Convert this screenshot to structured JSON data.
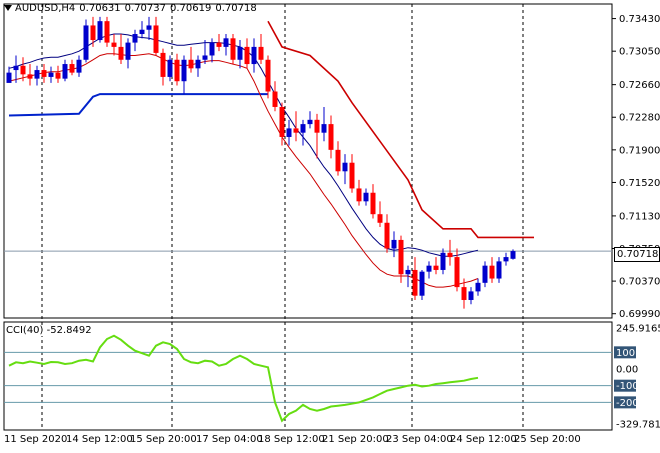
{
  "header": {
    "symbol": "AUDUSD,H4",
    "open": "0.70631",
    "high": "0.70737",
    "low": "0.70619",
    "close": "0.70718"
  },
  "indicator": {
    "label": "CCI(40) -52.8492"
  },
  "current_price": "0.70718",
  "colors": {
    "bull": "#0000cc",
    "bear": "#ff0000",
    "ma_dark": "#000080",
    "ma_light": "#cc0000",
    "resistance": "#cc0000",
    "support": "#0022cc",
    "cci": "#66dd11",
    "grid": "#000000"
  },
  "chart_data": [
    {
      "type": "candlestick",
      "y_ticks": [
        "0.73430",
        "0.73050",
        "0.72660",
        "0.72280",
        "0.71900",
        "0.71520",
        "0.71130",
        "0.70750",
        "0.70370",
        "0.69990"
      ],
      "x_ticks": [
        "11 Sep 2020",
        "14 Sep 12:00",
        "15 Sep 20:00",
        "17 Sep 04:00",
        "18 Sep 12:00",
        "21 Sep 20:00",
        "23 Sep 04:00",
        "24 Sep 12:00",
        "25 Sep 20:00"
      ],
      "ylim": [
        0.6994,
        0.736
      ],
      "candles": [
        [
          0.7268,
          0.7287,
          0.727,
          0.728
        ],
        [
          0.7283,
          0.73,
          0.7268,
          0.7288
        ],
        [
          0.7288,
          0.7298,
          0.727,
          0.7278
        ],
        [
          0.7278,
          0.729,
          0.7265,
          0.7273
        ],
        [
          0.7273,
          0.7288,
          0.7265,
          0.7283
        ],
        [
          0.7283,
          0.729,
          0.7268,
          0.7275
        ],
        [
          0.7275,
          0.7287,
          0.7268,
          0.728
        ],
        [
          0.728,
          0.7288,
          0.7268,
          0.7273
        ],
        [
          0.7273,
          0.7295,
          0.727,
          0.729
        ],
        [
          0.729,
          0.7295,
          0.7277,
          0.728
        ],
        [
          0.728,
          0.73,
          0.7275,
          0.7295
        ],
        [
          0.7295,
          0.7342,
          0.7292,
          0.7335
        ],
        [
          0.7335,
          0.7345,
          0.731,
          0.7318
        ],
        [
          0.7318,
          0.7345,
          0.7315,
          0.734
        ],
        [
          0.734,
          0.7345,
          0.731,
          0.7315
        ],
        [
          0.7315,
          0.7325,
          0.73,
          0.731
        ],
        [
          0.731,
          0.7325,
          0.729,
          0.7295
        ],
        [
          0.7295,
          0.732,
          0.7285,
          0.7315
        ],
        [
          0.7315,
          0.733,
          0.7305,
          0.7325
        ],
        [
          0.7325,
          0.734,
          0.732,
          0.733
        ],
        [
          0.733,
          0.7345,
          0.7318,
          0.7335
        ],
        [
          0.7335,
          0.7345,
          0.73,
          0.7303
        ],
        [
          0.7303,
          0.7308,
          0.7265,
          0.7275
        ],
        [
          0.7275,
          0.73,
          0.727,
          0.7295
        ],
        [
          0.7295,
          0.7302,
          0.7265,
          0.727
        ],
        [
          0.727,
          0.73,
          0.7255,
          0.7295
        ],
        [
          0.7295,
          0.731,
          0.728,
          0.7285
        ],
        [
          0.7285,
          0.73,
          0.7275,
          0.7295
        ],
        [
          0.7295,
          0.7318,
          0.729,
          0.73
        ],
        [
          0.73,
          0.732,
          0.7292,
          0.7315
        ],
        [
          0.7315,
          0.7325,
          0.7305,
          0.731
        ],
        [
          0.731,
          0.7325,
          0.73,
          0.732
        ],
        [
          0.732,
          0.7325,
          0.729,
          0.7295
        ],
        [
          0.7295,
          0.7318,
          0.7285,
          0.731
        ],
        [
          0.731,
          0.732,
          0.7285,
          0.729
        ],
        [
          0.729,
          0.732,
          0.728,
          0.731
        ],
        [
          0.731,
          0.7325,
          0.729,
          0.7295
        ],
        [
          0.7295,
          0.73,
          0.725,
          0.7258
        ],
        [
          0.7258,
          0.727,
          0.7235,
          0.724
        ],
        [
          0.724,
          0.7245,
          0.7195,
          0.7205
        ],
        [
          0.7205,
          0.7225,
          0.7195,
          0.7215
        ],
        [
          0.7215,
          0.7235,
          0.72,
          0.721
        ],
        [
          0.721,
          0.7225,
          0.7195,
          0.722
        ],
        [
          0.722,
          0.7235,
          0.7215,
          0.7225
        ],
        [
          0.7225,
          0.7232,
          0.718,
          0.721
        ],
        [
          0.721,
          0.724,
          0.72,
          0.722
        ],
        [
          0.722,
          0.723,
          0.718,
          0.719
        ],
        [
          0.719,
          0.72,
          0.716,
          0.7165
        ],
        [
          0.7165,
          0.7185,
          0.715,
          0.7175
        ],
        [
          0.7175,
          0.7185,
          0.714,
          0.7145
        ],
        [
          0.7145,
          0.7155,
          0.7125,
          0.713
        ],
        [
          0.713,
          0.7145,
          0.7125,
          0.714
        ],
        [
          0.714,
          0.715,
          0.711,
          0.7115
        ],
        [
          0.7115,
          0.713,
          0.71,
          0.7105
        ],
        [
          0.7105,
          0.7115,
          0.707,
          0.7075
        ],
        [
          0.7075,
          0.7095,
          0.7065,
          0.7085
        ],
        [
          0.7085,
          0.709,
          0.7035,
          0.7045
        ],
        [
          0.7045,
          0.7055,
          0.703,
          0.705
        ],
        [
          0.705,
          0.7065,
          0.7015,
          0.702
        ],
        [
          0.702,
          0.705,
          0.7015,
          0.7048
        ],
        [
          0.7048,
          0.706,
          0.704,
          0.7055
        ],
        [
          0.7055,
          0.7065,
          0.7045,
          0.705
        ],
        [
          0.705,
          0.7075,
          0.7045,
          0.707
        ],
        [
          0.707,
          0.7085,
          0.7055,
          0.7065
        ],
        [
          0.7065,
          0.7075,
          0.7025,
          0.703
        ],
        [
          0.703,
          0.704,
          0.7005,
          0.7015
        ],
        [
          0.7015,
          0.703,
          0.701,
          0.7025
        ],
        [
          0.7025,
          0.704,
          0.702,
          0.7035
        ],
        [
          0.7035,
          0.706,
          0.703,
          0.7055
        ],
        [
          0.7055,
          0.7065,
          0.7035,
          0.704
        ],
        [
          0.704,
          0.7065,
          0.7035,
          0.706
        ],
        [
          0.706,
          0.707,
          0.7055,
          0.7065
        ],
        [
          0.7063,
          0.7074,
          0.7062,
          0.7072
        ]
      ],
      "ma_dark": [
        0.7285,
        0.7287,
        0.729,
        0.7292,
        0.7295,
        0.7297,
        0.7298,
        0.7298,
        0.73,
        0.7302,
        0.7305,
        0.731,
        0.7315,
        0.732,
        0.7323,
        0.7325,
        0.7325,
        0.7324,
        0.7322,
        0.7321,
        0.732,
        0.7318,
        0.7316,
        0.7314,
        0.7312,
        0.7312,
        0.7313,
        0.7314,
        0.7315,
        0.7315,
        0.7315,
        0.7314,
        0.7312,
        0.731,
        0.7305,
        0.7298,
        0.7285,
        0.727,
        0.7255,
        0.724,
        0.7228,
        0.7215,
        0.7205,
        0.7195,
        0.7182,
        0.717,
        0.716,
        0.7148,
        0.7135,
        0.7122,
        0.711,
        0.7098,
        0.7088,
        0.708,
        0.7075,
        0.7073,
        0.7074,
        0.7076,
        0.7075,
        0.7073,
        0.707,
        0.7068,
        0.7066,
        0.7066,
        0.7067,
        0.7069,
        0.7071,
        0.7073
      ],
      "ma_light": [
        0.727,
        0.7272,
        0.7274,
        0.7276,
        0.7278,
        0.728,
        0.7281,
        0.7281,
        0.7283,
        0.7284,
        0.7286,
        0.729,
        0.7295,
        0.73,
        0.7302,
        0.7302,
        0.7301,
        0.73,
        0.73,
        0.7301,
        0.7302,
        0.73,
        0.7296,
        0.7292,
        0.7289,
        0.7288,
        0.7289,
        0.7291,
        0.7293,
        0.7294,
        0.7294,
        0.7292,
        0.729,
        0.7288,
        0.7285,
        0.727,
        0.7252,
        0.7235,
        0.722,
        0.7205,
        0.7193,
        0.7182,
        0.7172,
        0.7162,
        0.715,
        0.7138,
        0.7127,
        0.7115,
        0.7103,
        0.709,
        0.7079,
        0.7068,
        0.7058,
        0.705,
        0.7045,
        0.7043,
        0.7043,
        0.7043,
        0.704,
        0.7036,
        0.7032,
        0.703,
        0.703,
        0.7031,
        0.7033,
        0.7035,
        0.7037,
        0.704
      ],
      "resistance": [
        [
          37,
          0.734
        ],
        [
          39,
          0.731
        ],
        [
          43,
          0.73
        ],
        [
          47,
          0.727
        ],
        [
          49,
          0.7245
        ],
        [
          53,
          0.72
        ],
        [
          57,
          0.7155
        ],
        [
          59,
          0.712
        ],
        [
          62,
          0.7098
        ],
        [
          66,
          0.7098
        ],
        [
          67,
          0.7088
        ],
        [
          75,
          0.7088
        ]
      ],
      "support": [
        [
          0,
          0.723
        ],
        [
          10,
          0.7232
        ],
        [
          12,
          0.7252
        ],
        [
          13,
          0.7255
        ],
        [
          37,
          0.7255
        ]
      ]
    },
    {
      "type": "line",
      "label": "CCI(40) -52.8492",
      "y_ticks": [
        "245.9165",
        "100",
        "0.00",
        "-100",
        "-200",
        "-329.7812"
      ],
      "levels": [
        100,
        -100,
        -200
      ],
      "ylim": [
        -329.7812,
        245.9165
      ],
      "values": [
        20,
        40,
        35,
        45,
        38,
        30,
        42,
        40,
        30,
        35,
        50,
        55,
        45,
        130,
        180,
        200,
        175,
        140,
        110,
        95,
        80,
        140,
        160,
        150,
        120,
        60,
        40,
        35,
        50,
        45,
        20,
        30,
        60,
        80,
        60,
        30,
        20,
        10,
        -200,
        -310,
        -270,
        -250,
        -215,
        -240,
        -250,
        -240,
        -225,
        -220,
        -215,
        -208,
        -200,
        -185,
        -170,
        -150,
        -130,
        -120,
        -110,
        -100,
        -95,
        -105,
        -100,
        -90,
        -85,
        -80,
        -75,
        -70,
        -60,
        -52.8
      ]
    }
  ]
}
